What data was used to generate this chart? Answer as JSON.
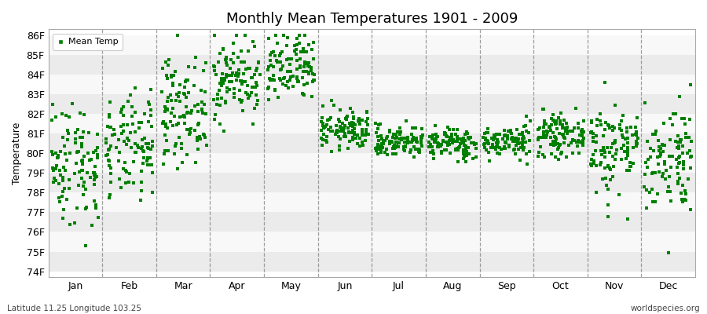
{
  "title": "Monthly Mean Temperatures 1901 - 2009",
  "ylabel": "Temperature",
  "xlabel_months": [
    "Jan",
    "Feb",
    "Mar",
    "Apr",
    "May",
    "Jun",
    "Jul",
    "Aug",
    "Sep",
    "Oct",
    "Nov",
    "Dec"
  ],
  "ytick_labels": [
    "74F",
    "75F",
    "76F",
    "77F",
    "78F",
    "79F",
    "80F",
    "81F",
    "82F",
    "83F",
    "84F",
    "85F",
    "86F"
  ],
  "ytick_values": [
    74,
    75,
    76,
    77,
    78,
    79,
    80,
    81,
    82,
    83,
    84,
    85,
    86
  ],
  "ylim": [
    73.7,
    86.3
  ],
  "marker_color": "#008000",
  "background_color": "#FFFFFF",
  "band_color_light": "#EBEBEB",
  "band_color_white": "#F8F8F8",
  "grid_color": "#888888",
  "footer_left": "Latitude 11.25 Longitude 103.25",
  "footer_right": "worldspecies.org",
  "legend_label": "Mean Temp",
  "monthly_means": [
    79.5,
    80.2,
    82.2,
    83.8,
    84.2,
    81.2,
    80.6,
    80.5,
    80.6,
    80.9,
    80.3,
    79.8
  ],
  "monthly_stds": [
    1.6,
    1.3,
    1.3,
    1.0,
    0.9,
    0.5,
    0.4,
    0.4,
    0.4,
    0.5,
    1.2,
    1.4
  ],
  "n_years": 109,
  "seed": 42,
  "hband_colors": [
    "#EBEBEB",
    "#F8F8F8"
  ],
  "hband_ranges": [
    [
      74,
      75
    ],
    [
      75,
      76
    ],
    [
      76,
      77
    ],
    [
      77,
      78
    ],
    [
      78,
      79
    ],
    [
      79,
      80
    ],
    [
      80,
      81
    ],
    [
      81,
      82
    ],
    [
      82,
      83
    ],
    [
      83,
      84
    ],
    [
      84,
      85
    ],
    [
      85,
      86
    ]
  ]
}
